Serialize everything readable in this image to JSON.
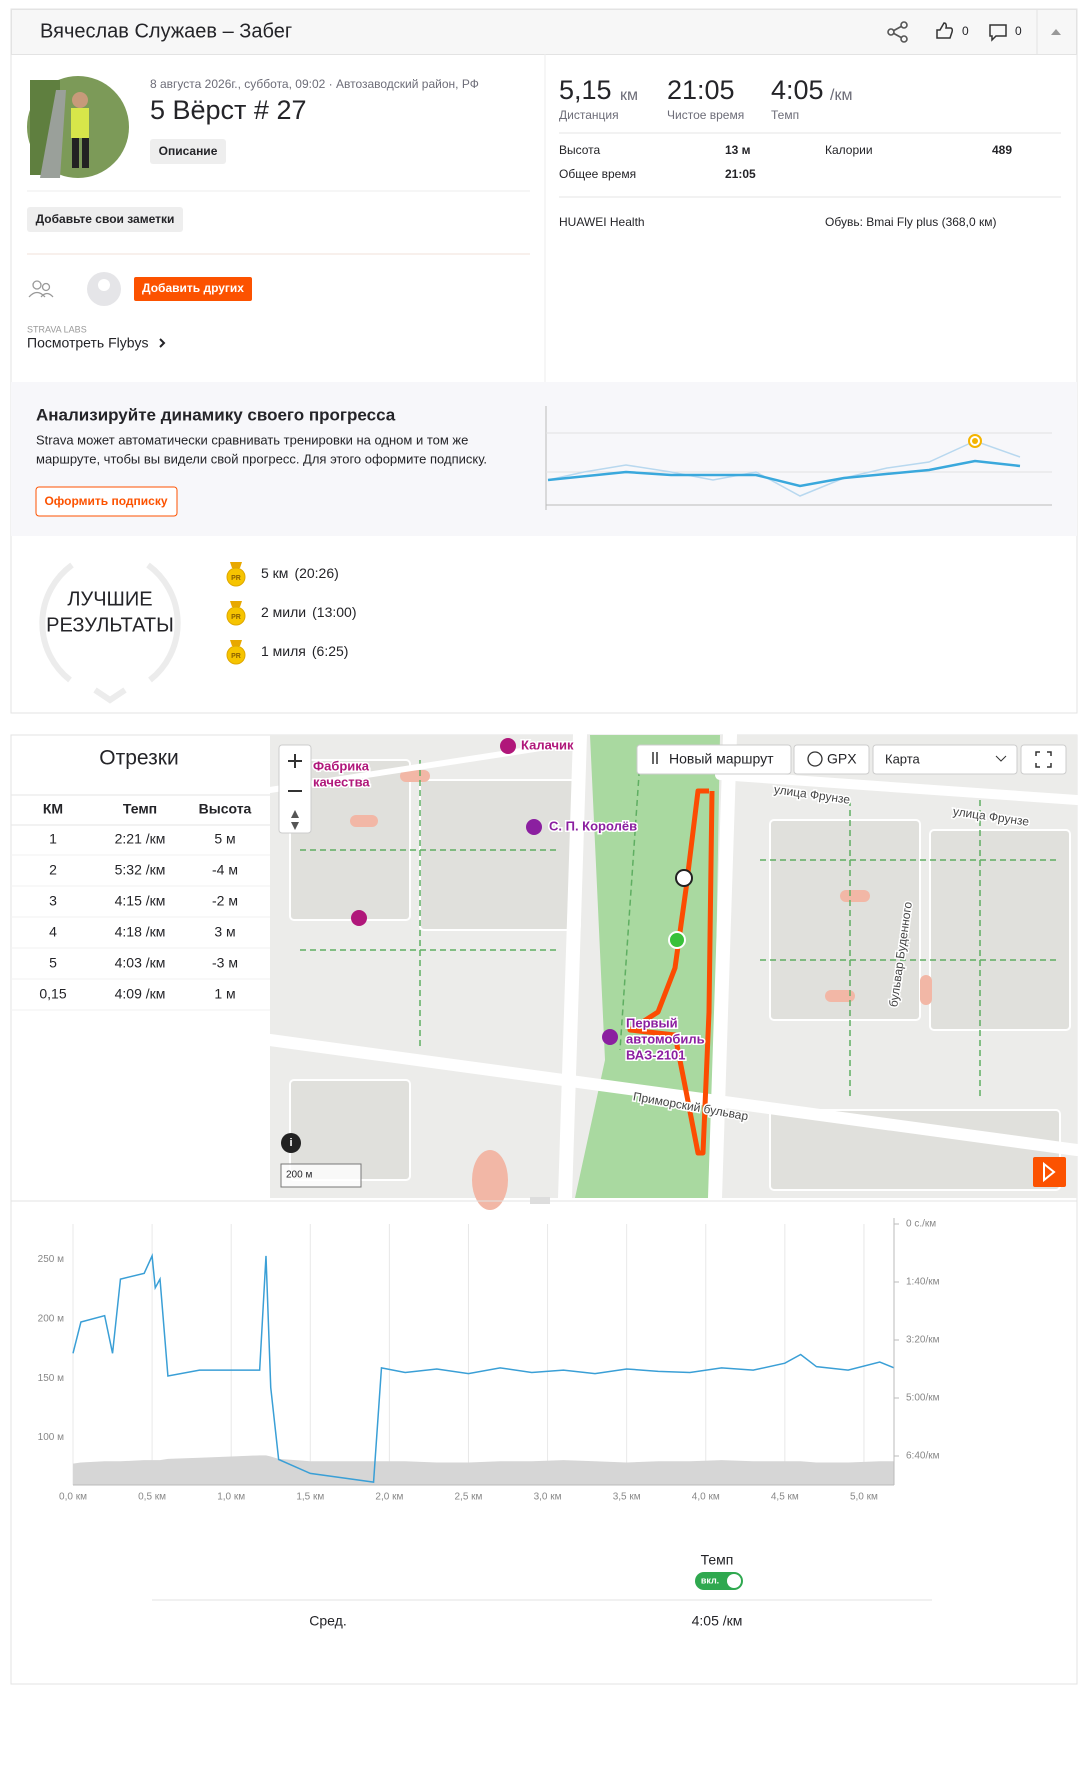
{
  "header": {
    "title": "Вячеслав Служаев – Забег",
    "kudos": "0",
    "comments": "0"
  },
  "activity": {
    "meta": "8 августа 2026г., суббота, 09:02 · Автозаводский район, РФ",
    "name": "5 Вёрст # 27",
    "description_button": "Описание",
    "notes_button": "Добавьте свои заметки",
    "add_others_button": "Добавить других",
    "labs": "STRAVA LABS",
    "flybys": "Посмотреть Flybys"
  },
  "stats": {
    "primary": [
      {
        "value": "5,15",
        "unit": "км",
        "label": "Дистанция"
      },
      {
        "value": "21:05",
        "label": "Чистое время"
      },
      {
        "value": "4:05",
        "unit": "/км",
        "label": "Темп"
      }
    ],
    "details": [
      {
        "label": "Высота",
        "value": "13 м"
      },
      {
        "label": "Общее время",
        "value": "21:05"
      },
      {
        "label": "Калории",
        "value": "489"
      }
    ],
    "device": "HUAWEI Health",
    "shoes": "Обувь: Bmai Fly plus (368,0 км)"
  },
  "upsell": {
    "title": "Анализируйте динамику своего прогресса",
    "text_lines": [
      "Strava может автоматически сравнивать тренировки на одном и том же",
      "маршруте, чтобы вы видели свой прогресс. Для этого оформите подписку."
    ],
    "button": "Оформить подписку"
  },
  "best_efforts": {
    "badge": [
      "ЛУЧШИЕ",
      "РЕЗУЛЬТАТЫ"
    ],
    "icon": "PR",
    "items": [
      {
        "name": "5 км",
        "time": "(20:26)"
      },
      {
        "name": "2 мили",
        "time": "(13:00)"
      },
      {
        "name": "1 миля",
        "time": "(6:25)"
      }
    ]
  },
  "laps": {
    "title": "Отрезки",
    "columns": [
      "КМ",
      "Темп",
      "Высота"
    ],
    "rows": [
      [
        "1",
        "2:21 /км",
        "5 м"
      ],
      [
        "2",
        "5:32 /км",
        "-4 м"
      ],
      [
        "3",
        "4:15 /км",
        "-2 м"
      ],
      [
        "4",
        "4:18 /км",
        "3 м"
      ],
      [
        "5",
        "4:03 /км",
        "-3 м"
      ],
      [
        "0,15",
        "4:09 /км",
        "1 м"
      ]
    ]
  },
  "map": {
    "controls": {
      "new_route": "Новый маршрут",
      "gpx": "GPX",
      "map_type": "Карта"
    },
    "labels": [
      "Калачик",
      "Фабрика",
      "качества",
      "С. П. Королёв",
      "Первый",
      "автомобиль",
      "ВАЗ-2101",
      "улица Фрунзе",
      "улица Фрунзе",
      "Приморский бульвар",
      "бульвар Буденного"
    ],
    "scale": "200 м"
  },
  "chart_data": {
    "type": "line",
    "x": [
      0,
      0.05,
      0.2,
      0.25,
      0.3,
      0.45,
      0.5,
      0.52,
      0.55,
      0.6,
      0.8,
      1.0,
      1.18,
      1.22,
      1.25,
      1.3,
      1.5,
      1.9,
      1.95,
      2.1,
      2.3,
      2.5,
      2.7,
      2.9,
      3.1,
      3.3,
      3.5,
      3.7,
      3.9,
      4.1,
      4.3,
      4.5,
      4.6,
      4.7,
      4.9,
      5.1,
      5.19
    ],
    "xlim": [
      0,
      5.19
    ],
    "xticks": [
      {
        "value": 0,
        "label": "0,0 км"
      },
      {
        "value": 0.5,
        "label": "0,5 км"
      },
      {
        "value": 1,
        "label": "1,0 км"
      },
      {
        "value": 1.5,
        "label": "1,5 км"
      },
      {
        "value": 2,
        "label": "2,0 км"
      },
      {
        "value": 2.5,
        "label": "2,5 км"
      },
      {
        "value": 3,
        "label": "3,0 км"
      },
      {
        "value": 3.5,
        "label": "3,5 км"
      },
      {
        "value": 4,
        "label": "4,0 км"
      },
      {
        "value": 4.5,
        "label": "4,5 км"
      },
      {
        "value": 5,
        "label": "5,0 км"
      }
    ],
    "ylim": [
      60,
      280
    ],
    "yticks": [
      {
        "value": 100,
        "label": "100 м"
      },
      {
        "value": 150,
        "label": "150 м"
      },
      {
        "value": 200,
        "label": "200 м"
      },
      {
        "value": 250,
        "label": "250 м"
      }
    ],
    "y2lim": [
      450,
      0
    ],
    "y2ticks": [
      {
        "value": 0,
        "label": "0 с./км"
      },
      {
        "value": 100,
        "label": "1:40/км"
      },
      {
        "value": 200,
        "label": "3:20/км"
      },
      {
        "value": 300,
        "label": "5:00/км"
      },
      {
        "value": 400,
        "label": "6:40/км"
      }
    ],
    "grid": "x",
    "series": [
      {
        "name": "Темп",
        "color": "#3a9fd6",
        "axis": "y2",
        "values": [
          223,
          169,
          158,
          223,
          95,
          85,
          55,
          110,
          95,
          262,
          252,
          252,
          252,
          55,
          282,
          406,
          430,
          445,
          248,
          256,
          250,
          258,
          248,
          256,
          252,
          258,
          250,
          254,
          256,
          248,
          252,
          240,
          225,
          246,
          252,
          238,
          248
        ]
      },
      {
        "color": "#d6d6d6",
        "fill": true,
        "values": [
          78,
          79,
          80,
          80,
          80,
          81,
          81,
          81,
          81,
          82,
          83,
          84,
          85,
          85,
          84,
          82,
          80,
          80,
          80,
          80,
          79,
          79,
          80,
          80,
          81,
          80,
          79,
          80,
          80,
          81,
          80,
          80,
          80,
          79,
          79,
          80,
          80
        ]
      }
    ],
    "legend_toggle": "вкл.",
    "summary": {
      "label": "Сред.",
      "value": "4:05 /км"
    }
  }
}
